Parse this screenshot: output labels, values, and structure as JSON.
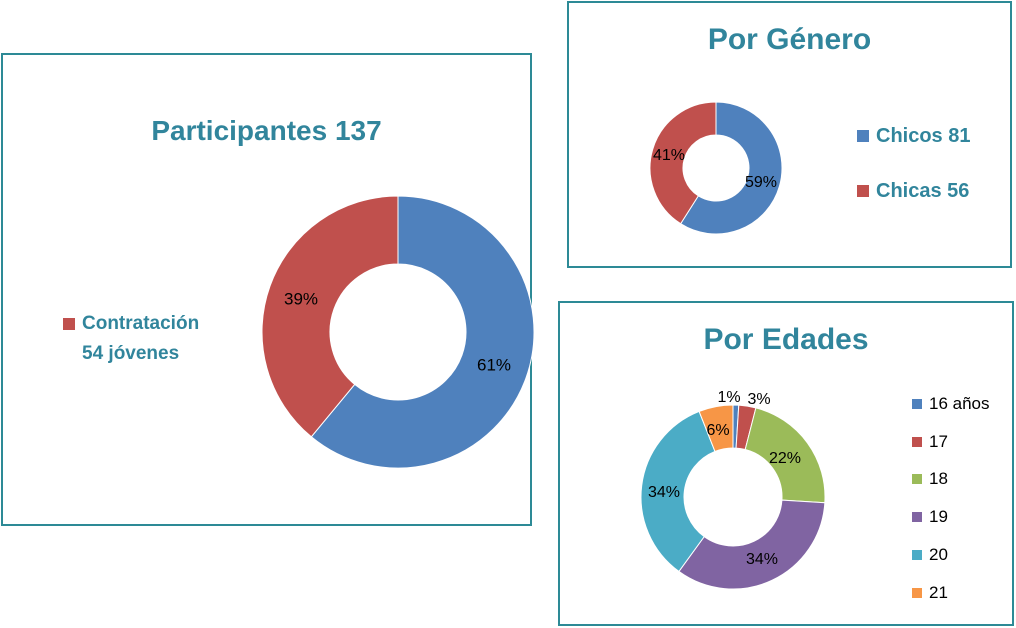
{
  "chart_data": [
    {
      "type": "donut",
      "title": "Participantes 137",
      "slices": [
        {
          "label": "",
          "percent": 61,
          "percent_label": "61%",
          "color": "#4f81bd"
        },
        {
          "label": "Contratación 54 jóvenes",
          "percent": 39,
          "percent_label": "39%",
          "color": "#c0504d"
        }
      ],
      "legend": {
        "placement": "left",
        "line1": "Contratación",
        "line2": "54 jóvenes",
        "color": "#c0504d"
      }
    },
    {
      "type": "donut",
      "title": "Por Género",
      "slices": [
        {
          "label": "Chicos 81",
          "percent": 59,
          "percent_label": "59%",
          "color": "#4f81bd"
        },
        {
          "label": "Chicas 56",
          "percent": 41,
          "percent_label": "41%",
          "color": "#c0504d"
        }
      ],
      "legend": {
        "placement": "right"
      }
    },
    {
      "type": "donut",
      "title": "Por Edades",
      "slices": [
        {
          "label": "16 años",
          "percent": 1,
          "percent_label": "1%",
          "color": "#4f81bd"
        },
        {
          "label": "17",
          "percent": 3,
          "percent_label": "3%",
          "color": "#c0504d"
        },
        {
          "label": "18",
          "percent": 22,
          "percent_label": "22%",
          "color": "#9bbb59"
        },
        {
          "label": "19",
          "percent": 34,
          "percent_label": "34%",
          "color": "#8064a2"
        },
        {
          "label": "20",
          "percent": 34,
          "percent_label": "34%",
          "color": "#4bacc6"
        },
        {
          "label": "21",
          "percent": 6,
          "percent_label": "6%",
          "color": "#f79646"
        }
      ],
      "legend": {
        "placement": "right"
      }
    }
  ]
}
